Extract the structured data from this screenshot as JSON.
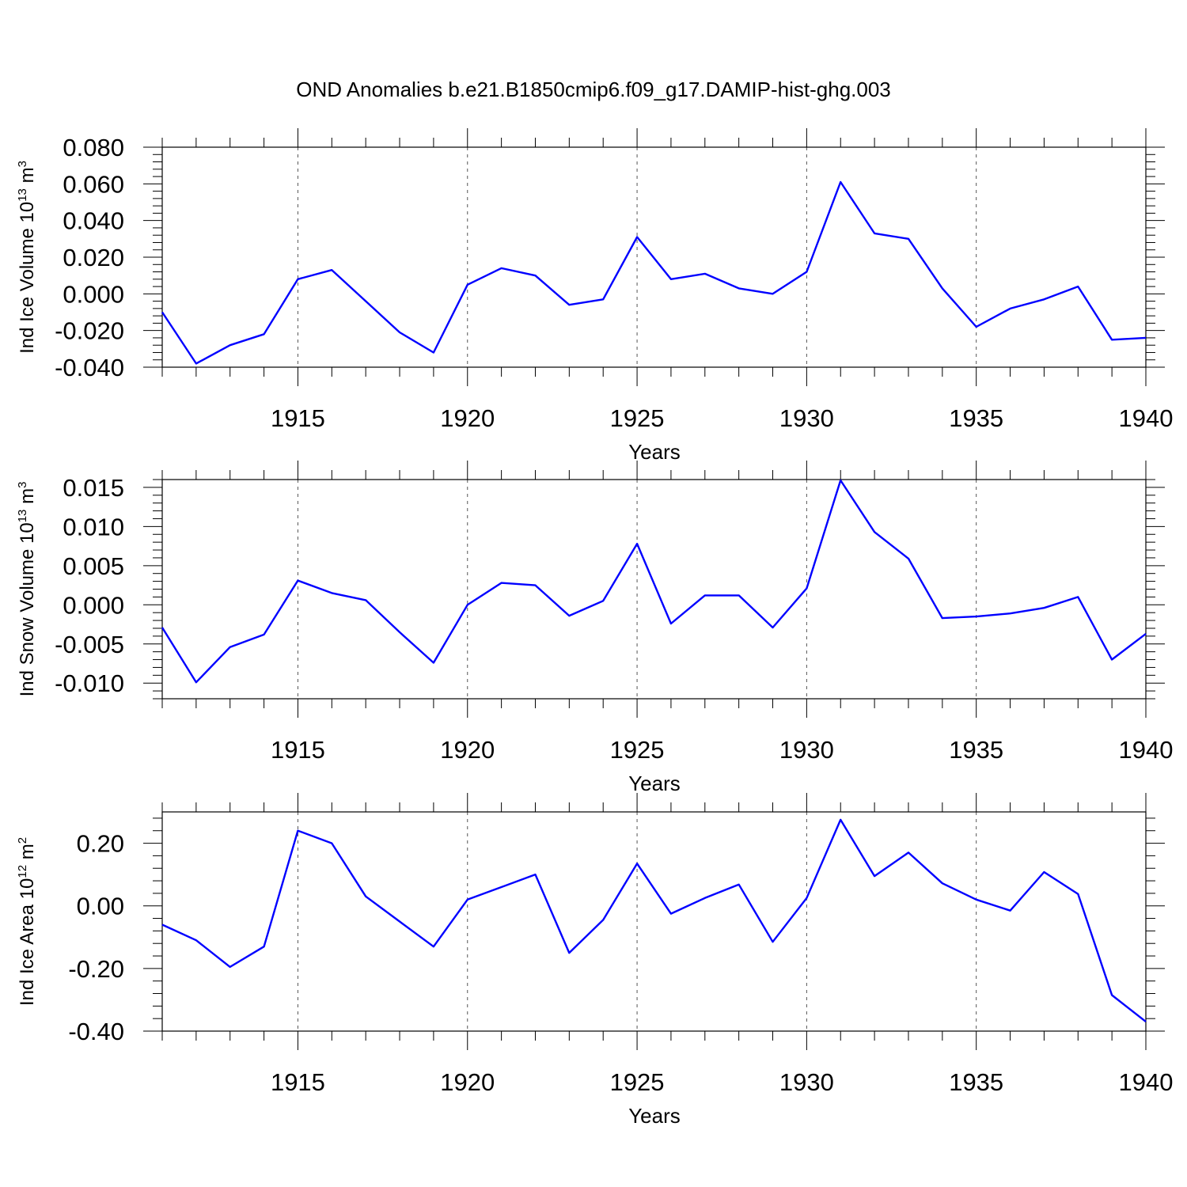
{
  "title": "OND Anomalies b.e21.B1850cmip6.f09_g17.DAMIP-hist-ghg.003",
  "chart_data": [
    {
      "type": "line",
      "xlabel": "Years",
      "ylabel": "Ind Ice Volume 10",
      "ylabel_exp": "13",
      "ylabel_unit": " m",
      "ylabel_unit_exp": "3",
      "xlim": [
        1911,
        1940
      ],
      "ylim": [
        -0.04,
        0.08
      ],
      "yticks": [
        -0.04,
        -0.02,
        0.0,
        0.02,
        0.04,
        0.06,
        0.08
      ],
      "yticklabels": [
        "-0.040",
        "-0.020",
        "0.000",
        "0.020",
        "0.040",
        "0.060",
        "0.080"
      ],
      "xticks": [
        1915,
        1920,
        1925,
        1930,
        1935,
        1940
      ],
      "xticklabels": [
        "1915",
        "1920",
        "1925",
        "1930",
        "1935",
        "1940"
      ],
      "color": "#0000ff",
      "x": [
        1911,
        1912,
        1913,
        1914,
        1915,
        1916,
        1917,
        1918,
        1919,
        1920,
        1921,
        1922,
        1923,
        1924,
        1925,
        1926,
        1927,
        1928,
        1929,
        1930,
        1931,
        1932,
        1933,
        1934,
        1935,
        1936,
        1937,
        1938,
        1939,
        1940
      ],
      "values": [
        -0.01,
        -0.038,
        -0.028,
        -0.022,
        0.008,
        0.013,
        -0.004,
        -0.021,
        -0.032,
        0.005,
        0.014,
        0.01,
        -0.006,
        -0.003,
        0.031,
        0.008,
        0.011,
        0.003,
        0.0,
        0.012,
        0.061,
        0.033,
        0.03,
        0.003,
        -0.018,
        -0.008,
        -0.003,
        0.004,
        -0.025,
        -0.024
      ]
    },
    {
      "type": "line",
      "xlabel": "Years",
      "ylabel": "Ind Snow Volume 10",
      "ylabel_exp": "13",
      "ylabel_unit": " m",
      "ylabel_unit_exp": "3",
      "xlim": [
        1911,
        1940
      ],
      "ylim": [
        -0.012,
        0.016
      ],
      "yticks": [
        -0.01,
        -0.005,
        0.0,
        0.005,
        0.01,
        0.015
      ],
      "yticklabels": [
        "-0.010",
        "-0.005",
        "0.000",
        "0.005",
        "0.010",
        "0.015"
      ],
      "xticks": [
        1915,
        1920,
        1925,
        1930,
        1935,
        1940
      ],
      "xticklabels": [
        "1915",
        "1920",
        "1925",
        "1930",
        "1935",
        "1940"
      ],
      "color": "#0000ff",
      "x": [
        1911,
        1912,
        1913,
        1914,
        1915,
        1916,
        1917,
        1918,
        1919,
        1920,
        1921,
        1922,
        1923,
        1924,
        1925,
        1926,
        1927,
        1928,
        1929,
        1930,
        1931,
        1932,
        1933,
        1934,
        1935,
        1936,
        1937,
        1938,
        1939,
        1940
      ],
      "values": [
        -0.0029,
        -0.0099,
        -0.0054,
        -0.0038,
        0.0031,
        0.0015,
        0.0006,
        -0.0035,
        -0.0074,
        0.0,
        0.0028,
        0.0025,
        -0.0014,
        0.0005,
        0.0078,
        -0.0024,
        0.0012,
        0.0012,
        -0.0029,
        0.0021,
        0.0159,
        0.0093,
        0.0059,
        -0.0017,
        -0.0015,
        -0.0011,
        -0.0004,
        0.001,
        -0.007,
        -0.0037
      ]
    },
    {
      "type": "line",
      "xlabel": "Years",
      "ylabel": "Ind Ice Area 10",
      "ylabel_exp": "12",
      "ylabel_unit": " m",
      "ylabel_unit_exp": "2",
      "xlim": [
        1911,
        1940
      ],
      "ylim": [
        -0.4,
        0.3
      ],
      "yticks": [
        -0.4,
        -0.2,
        0.0,
        0.2
      ],
      "yticklabels": [
        "-0.40",
        "-0.20",
        "0.00",
        "0.20"
      ],
      "xticks": [
        1915,
        1920,
        1925,
        1930,
        1935,
        1940
      ],
      "xticklabels": [
        "1915",
        "1920",
        "1925",
        "1930",
        "1935",
        "1940"
      ],
      "color": "#0000ff",
      "x": [
        1911,
        1912,
        1913,
        1914,
        1915,
        1916,
        1917,
        1918,
        1919,
        1920,
        1921,
        1922,
        1923,
        1924,
        1925,
        1926,
        1927,
        1928,
        1929,
        1930,
        1931,
        1932,
        1933,
        1934,
        1935,
        1936,
        1937,
        1938,
        1939,
        1940
      ],
      "values": [
        -0.06,
        -0.11,
        -0.195,
        -0.13,
        0.24,
        0.2,
        0.03,
        -0.05,
        -0.13,
        0.02,
        0.06,
        0.1,
        -0.15,
        -0.045,
        0.135,
        -0.025,
        0.025,
        0.068,
        -0.115,
        0.025,
        0.275,
        0.095,
        0.17,
        0.072,
        0.02,
        -0.015,
        0.108,
        0.038,
        -0.285,
        -0.37
      ]
    }
  ]
}
